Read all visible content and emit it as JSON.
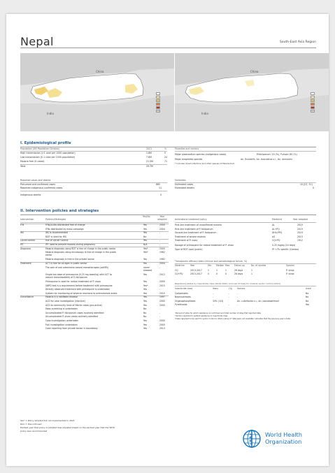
{
  "header": {
    "country": "Nepal",
    "region": "South-East Asia Region"
  },
  "maps": {
    "left": {
      "labels": {
        "china": "China",
        "india": "India"
      }
    },
    "right": {
      "labels": {
        "china": "China",
        "india": "India"
      }
    }
  },
  "epi": {
    "title": "I. Epidemiological profile",
    "population": {
      "header": "Population (UN Population Division)",
      "year": "2021",
      "pct": "%",
      "rows": [
        {
          "label": "High transmission (>1 case per 1000 population)",
          "value": "1.6M",
          "pct": "5"
        },
        {
          "label": "Low transmission (0-1 case per 1000 population)",
          "value": "7.6M",
          "pct": "24"
        },
        {
          "label": "Malaria free (0 cases)",
          "value": "21.5M",
          "pct": "71"
        },
        {
          "label": "Total",
          "value": "29.7M",
          "pct": ""
        }
      ]
    },
    "parasites": {
      "header": "Parasites and vectors",
      "rows": [
        {
          "label": "Major plasmodium species (indigenous cases)",
          "value": "P.falciparum: 20 (%), P.vivax: 80 (%)"
        },
        {
          "label": "Major anopheles species",
          "value": "An. fluviatilis, An. maculatus s.l., An. annularis"
        }
      ],
      "note": "* Includes mixed infections and other species of Plasmodium"
    },
    "reported": {
      "header": "Reported cases and deaths",
      "rows": [
        {
          "label": "Presumed and confirmed cases",
          "value": "665"
        },
        {
          "label": "Reported indigenous confirmed cases",
          "value": "11"
        },
        {
          "label": "Indigenous deaths",
          "value": "0"
        }
      ]
    },
    "estimates": {
      "header": "Estimates",
      "rows": [
        {
          "label": "Estimated cases",
          "value": "10 [07, 31]"
        },
        {
          "label": "Estimated deaths",
          "value": "0"
        }
      ]
    }
  },
  "policies": {
    "title": "II. Intervention policies and strategies",
    "headers": {
      "intervention": "Intervention",
      "policies": "Policies/Strategies",
      "yesno": "Yes/No",
      "year": "Year adopted"
    },
    "rows": [
      {
        "cat": "ITN",
        "text": "ITNs/LLINs distributed free of charge",
        "yn": "Yes",
        "year": "2004"
      },
      {
        "cat": "",
        "text": "ITNs distributed by mass campaign",
        "yn": "Yes",
        "year": "2004"
      },
      {
        "cat": "IRS",
        "text": "IRS is recommended",
        "yn": "Yes",
        "year": "-"
      },
      {
        "cat": "",
        "text": "DDT is used for IRS",
        "yn": "No",
        "year": "-"
      },
      {
        "cat": "Larval control",
        "text": "Use of Larval Control",
        "yn": "Yes",
        "year": "-"
      },
      {
        "cat": "IPT",
        "text": "IPT used to prevent malaria during pregnancy",
        "yn": "N/A",
        "year": "-"
      },
      {
        "cat": "Diagnosis",
        "text": "Malaria diagnosis using RDT is free of charge in the public sector",
        "yn": "Yes*",
        "year": "2000"
      },
      {
        "cat": "",
        "text": "Malaria diagnosis using microscopy is free of charge in the public",
        "text2": "sector",
        "yn": "Yes*",
        "year": "1962"
      },
      {
        "cat": "",
        "text": "Malaria diagnosis is free in the private sector",
        "yn": "Yes",
        "year": "1962"
      },
      {
        "cat": "Treatment",
        "text": "ACT is free for all ages in public sector",
        "yn": "Yes",
        "year": "2004"
      },
      {
        "cat": "",
        "text": "The sale of oral artemisinin-based monotherapies (oAMTs)",
        "yn": "never",
        "yn2": "allowed",
        "year": "-"
      },
      {
        "cat": "",
        "text": "Single low dose of primaquine (0.25 mg base/kg) with ACT to",
        "text2": "reduce transmissibility of P. falciparum",
        "yn": "Yes",
        "year": "2012"
      },
      {
        "cat": "",
        "text": "Primaquine is used for radical treatment of P. vivax",
        "yn": "Yes",
        "year": "2009"
      },
      {
        "cat": "",
        "text": "G6PD test is a requirement before treatment with primaquine",
        "yn": "Yes*",
        "year": "2015"
      },
      {
        "cat": "",
        "text": "Directly observed treatment with primaquine is undertaken",
        "yn": "Yes",
        "year": "-"
      },
      {
        "cat": "",
        "text": "System for monitoring of adverse reactions to antimalarials exists",
        "yn": "Yes",
        "year": "2010"
      },
      {
        "cat": "Surveillance",
        "text": "Malaria is a notifiable disease",
        "yn": "Yes",
        "year": "1997"
      },
      {
        "cat": "",
        "text": "ACD for case investigation (reactive)",
        "yn": "Yes",
        "year": "2000"
      },
      {
        "cat": "",
        "text": "ACD at community level of febrile cases (pro-active)",
        "yn": "Yes",
        "year": "2000"
      },
      {
        "cat": "",
        "text": "Mass screening is undertaken",
        "yn": "No",
        "year": "-"
      },
      {
        "cat": "",
        "text": "Uncomplicated P. falciparum cases routinely admitted",
        "yn": "No",
        "year": "-"
      },
      {
        "cat": "",
        "text": "Uncomplicated P. vivax cases routinely admitted",
        "yn": "No",
        "year": "-"
      },
      {
        "cat": "",
        "text": "Case investigation undertaken",
        "yn": "Yes",
        "year": "2000"
      },
      {
        "cat": "",
        "text": "Foci investigation undertaken",
        "yn": "Yes",
        "year": "2000"
      },
      {
        "cat": "",
        "text": "Case reporting from private sector is mandatory",
        "yn": "Yes",
        "year": "2013"
      }
    ],
    "footnotes": [
      "Yes* = Policy adopted but not implemented in 2021",
      "Disc = Discontinued",
      "Earliest year that policy is adopted was adjusted based on the earliest year that the WHO",
      "policy was recommended"
    ]
  },
  "treatment_policy": {
    "header": "Antimalaria treatment policy",
    "col_medicine": "Medicine",
    "col_year": "Year adopted",
    "rows": [
      {
        "label": "First-line treatment of unconfirmed malaria",
        "med": "AL",
        "year": "2019"
      },
      {
        "label": "First-line treatment of P. falciparum",
        "med": "AL+PQ",
        "year": "2019"
      },
      {
        "label": "Second-line treatment of P. falciparum",
        "med": "DHA-PPQ",
        "year": "2019"
      },
      {
        "label": "Treatment of severe malaria",
        "med": "AS",
        "year": "2013"
      },
      {
        "label": "Treatment of P. vivax",
        "med": "CQ+PQ",
        "year": "1912"
      },
      {
        "label": "Dosage of primaquine for radical treatment of P. vivax",
        "med": "0.25 mg/kg (14 days)",
        "year": ""
      },
      {
        "label": "Type of RDT used (public)",
        "med": "Pf + Pv specific (Combo)",
        "year": ""
      }
    ]
  },
  "efficacy": {
    "header": "Therapeutic efficacy tests (clinical and parasitological failure, %)",
    "cols": [
      "Medicine",
      "Year",
      "Min",
      "Median",
      "Max",
      "Follow-up",
      "No. of studies",
      "Species"
    ],
    "rows": [
      [
        "CQ",
        "2013-2017",
        "1",
        "1",
        "1",
        "28 days",
        "1",
        "P. vivax"
      ],
      [
        "CQ+PQ",
        "2013-2017",
        "0",
        "0",
        "0",
        "28 days",
        "1",
        "P. vivax"
      ]
    ]
  },
  "resistance": {
    "header": "Resistance status by insecticide class (2010-2021) and use of class for malaria vector control (2021)",
    "cols": [
      "Insecticide class",
      "Years",
      "(%)",
      "Vectors",
      "Used"
    ],
    "rows": [
      {
        "cls": "Carbamates",
        "years": "-",
        "pct": "-",
        "vec": "-",
        "used": "No"
      },
      {
        "cls": "Neonicotinoids",
        "years": "-",
        "pct": "-",
        "vec": "-",
        "used": "No"
      },
      {
        "cls": "Organophosphates",
        "years": "33% (1/3)",
        "pct": "",
        "vec": "An. culicifacies s.l., An. pseudowillmori",
        "used": "No"
      },
      {
        "cls": "Pyrethroids",
        "years": "-",
        "pct": "-",
        "vec": "-",
        "used": "Yes"
      }
    ],
    "notes": [
      "¹Percent of sites for which resistance is confirmed and total number of sites that reported data",
      "²Vectors reported to exhibit resistance to insecticide class",
      "³Class reported to be used for vector control in 2021 (value of 'data were not available' indicates that the previous year's data)"
    ]
  },
  "footer": {
    "org_line1": "World Health",
    "org_line2": "Organization"
  },
  "colors": {
    "accent": "#2a5d8c",
    "who_blue": "#1b75bb"
  }
}
